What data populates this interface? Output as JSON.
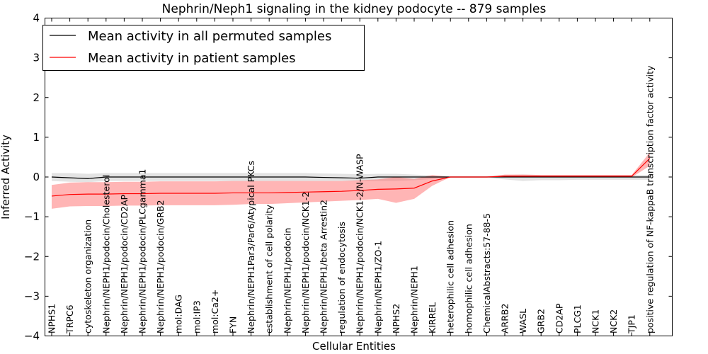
{
  "chart_data": {
    "type": "line",
    "title": "Nephrin/Neph1 signaling in the kidney podocyte -- 879 samples",
    "xlabel": "Cellular Entities",
    "ylabel": "Inferred Activity",
    "ylim": [
      -4,
      4
    ],
    "yticks": [
      "−4",
      "−3",
      "−2",
      "−1",
      "0",
      "1",
      "2",
      "3",
      "4"
    ],
    "grid": false,
    "legend_position": "top-left",
    "categories": [
      "NPHS1",
      "TRPC6",
      "cytoskeleton organization",
      "Nephrin/NEPH1/podocin/Cholesterol",
      "Nephrin/NEPH1/podocin/CD2AP",
      "Nephrin/NEPH1/podocin/PLCgamma1",
      "Nephrin/NEPH1/podocin/GRB2",
      "mol:DAG",
      "mol:IP3",
      "mol:Ca2+",
      "FYN",
      "Nephrin/NEPH1Par3/Par6/Atypical PKCs",
      "establishment of cell polarity",
      "Nephrin/NEPH1/podocin",
      "Nephrin/NEPH1/podocin/NCK1-2",
      "Nephrin/NEPH1/beta Arrestin2",
      "regulation of endocytosis",
      "Nephrin/NEPH1/podocin/NCK1-2/N-WASP",
      "Nephrin/NEPH1/ZO-1",
      "NPHS2",
      "Nephrin/NEPH1",
      "KIRREL",
      "heterophilic cell adhesion",
      "homophilic cell adhesion",
      "ChemicalAbstracts:57-88-5",
      "ARRB2",
      "WASL",
      "GRB2",
      "CD2AP",
      "PLCG1",
      "NCK1",
      "NCK2",
      "TJP1",
      "positive regulation of NF-kappaB transcription factor activity"
    ],
    "series": [
      {
        "name": "Mean activity in all permuted samples",
        "color": "#000000",
        "band_color": "#b0b0b0",
        "values": [
          0.0,
          -0.02,
          -0.04,
          0.0,
          0.0,
          0.0,
          0.0,
          0.0,
          0.0,
          0.0,
          0.0,
          0.0,
          0.0,
          0.0,
          0.0,
          -0.01,
          -0.02,
          -0.03,
          0.0,
          0.0,
          0.0,
          0.0,
          0.0,
          0.0,
          0.0,
          0.0,
          0.0,
          0.0,
          0.0,
          0.0,
          0.0,
          0.0,
          0.0,
          0.0
        ],
        "lower": [
          -0.1,
          -0.12,
          -0.13,
          -0.1,
          -0.1,
          -0.1,
          -0.1,
          -0.1,
          -0.1,
          -0.1,
          -0.1,
          -0.1,
          -0.1,
          -0.1,
          -0.1,
          -0.1,
          -0.1,
          -0.1,
          -0.1,
          -0.1,
          -0.08,
          -0.05,
          -0.02,
          -0.02,
          -0.02,
          -0.06,
          -0.1,
          -0.08,
          -0.08,
          -0.07,
          -0.07,
          -0.07,
          -0.07,
          -0.07
        ],
        "upper": [
          0.1,
          0.1,
          0.08,
          0.1,
          0.1,
          0.1,
          0.1,
          0.1,
          0.1,
          0.1,
          0.1,
          0.1,
          0.1,
          0.1,
          0.1,
          0.09,
          0.08,
          0.07,
          0.08,
          0.08,
          0.06,
          0.04,
          0.02,
          0.02,
          0.02,
          0.05,
          0.06,
          0.05,
          0.05,
          0.05,
          0.05,
          0.05,
          0.05,
          0.05
        ]
      },
      {
        "name": "Mean activity in patient samples",
        "color": "#ff0000",
        "band_color": "#ff5c5c",
        "values": [
          -0.48,
          -0.44,
          -0.43,
          -0.43,
          -0.42,
          -0.42,
          -0.41,
          -0.41,
          -0.41,
          -0.41,
          -0.4,
          -0.4,
          -0.4,
          -0.39,
          -0.38,
          -0.37,
          -0.36,
          -0.34,
          -0.31,
          -0.3,
          -0.28,
          -0.1,
          0.0,
          0.0,
          0.0,
          0.02,
          0.02,
          0.02,
          0.02,
          0.02,
          0.02,
          0.02,
          0.02,
          0.47
        ],
        "lower": [
          -0.8,
          -0.74,
          -0.73,
          -0.73,
          -0.72,
          -0.72,
          -0.71,
          -0.71,
          -0.71,
          -0.71,
          -0.7,
          -0.68,
          -0.68,
          -0.66,
          -0.64,
          -0.62,
          -0.6,
          -0.58,
          -0.55,
          -0.65,
          -0.55,
          -0.22,
          0.0,
          0.0,
          0.0,
          -0.01,
          -0.01,
          -0.01,
          -0.01,
          -0.01,
          -0.01,
          -0.01,
          -0.01,
          0.28
        ],
        "upper": [
          -0.2,
          -0.14,
          -0.13,
          -0.13,
          -0.12,
          -0.12,
          -0.11,
          -0.11,
          -0.11,
          -0.11,
          -0.1,
          -0.1,
          -0.1,
          -0.1,
          -0.1,
          -0.1,
          -0.1,
          -0.08,
          -0.06,
          0.0,
          -0.05,
          0.05,
          0.0,
          0.0,
          0.0,
          0.06,
          0.06,
          0.05,
          0.05,
          0.05,
          0.05,
          0.05,
          0.05,
          0.62
        ]
      }
    ]
  }
}
